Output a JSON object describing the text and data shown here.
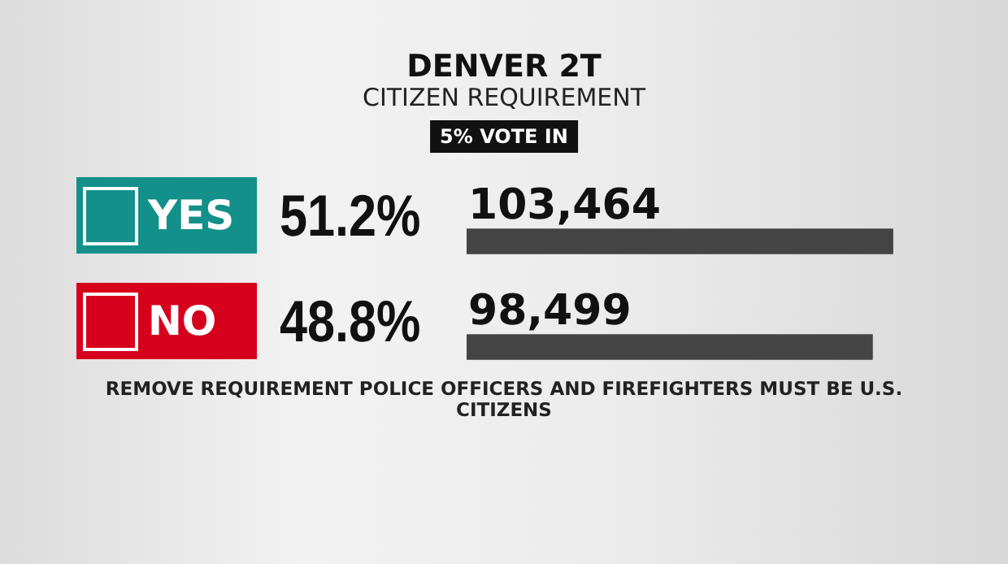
{
  "chart_data": {
    "type": "bar",
    "orientation": "horizontal",
    "title": "DENVER 2T",
    "subtitle": "CITIZEN REQUIREMENT",
    "categories": [
      "YES",
      "NO"
    ],
    "series": [
      {
        "color": "#444444",
        "values": [
          103464,
          98499
        ],
        "value_labels": [
          "103,464",
          "98,499"
        ]
      }
    ],
    "annotations": [
      "5% VOTE IN",
      "51.2%",
      "48.8%",
      "REMOVE REQUIREMENT POLICE OFFICERS AND FIREFIGHTERS MUST BE U.S. CITIZENS"
    ],
    "legend": false,
    "tick_labels": false
  }
}
